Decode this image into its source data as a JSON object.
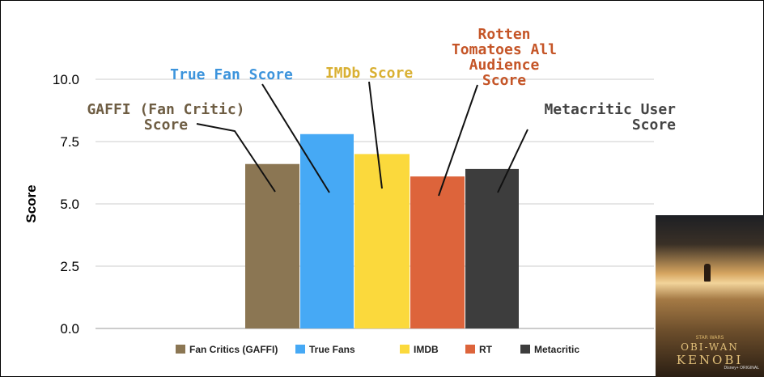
{
  "chart_data": {
    "type": "bar",
    "title": "",
    "xlabel": "",
    "ylabel": "Score",
    "ylim": [
      0,
      10
    ],
    "yticks": [
      "0.0",
      "2.5",
      "5.0",
      "7.5",
      "10.0"
    ],
    "grid": true,
    "legend_position": "bottom",
    "series": [
      {
        "name": "Fan Critics (GAFFI)",
        "value": 6.6,
        "color": "#8b7653"
      },
      {
        "name": "True Fans",
        "value": 7.8,
        "color": "#46a9f5"
      },
      {
        "name": "IMDB",
        "value": 7.0,
        "color": "#fbd93c"
      },
      {
        "name": "RT",
        "value": 6.1,
        "color": "#dd643b"
      },
      {
        "name": "Metacritic",
        "value": 6.4,
        "color": "#3d3d3d"
      }
    ],
    "annotations": [
      {
        "lines": [
          "GAFFI (Fan Critic)",
          "Score"
        ],
        "color": "#6e5d43"
      },
      {
        "lines": [
          "True Fan Score"
        ],
        "color": "#3d94dc"
      },
      {
        "lines": [
          "IMDb Score"
        ],
        "color": "#d9b033"
      },
      {
        "lines": [
          "Rotten",
          "Tomatoes All",
          "Audience",
          "Score"
        ],
        "color": "#c55527"
      },
      {
        "lines": [
          "Metacritic User",
          "Score"
        ],
        "color": "#444444"
      }
    ]
  },
  "poster": {
    "brand": "STAR WARS",
    "title_line1": "OBI-WAN",
    "title_line2": "KENOBI",
    "badge": "Disney+ ORIGINAL"
  }
}
